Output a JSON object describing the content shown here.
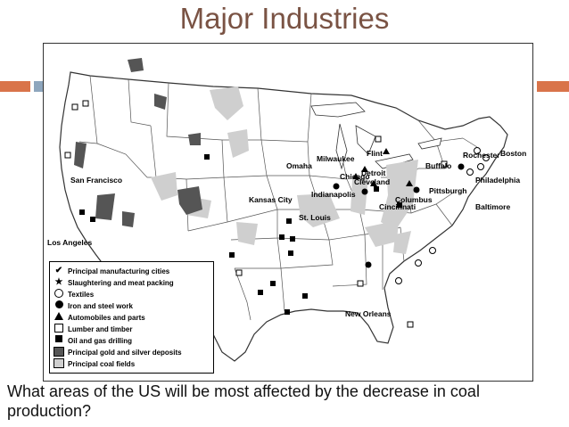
{
  "title": "Major Industries",
  "question": "What areas of the US will be most affected by the decrease in coal production?",
  "colors": {
    "title": "#7a5344",
    "accent_orange": "#d9744a",
    "accent_blue": "#8ea6bd",
    "gold_silver": "#555555",
    "coal": "#cfcfcf"
  },
  "map": {
    "cities": [
      "San Francisco",
      "Los Angeles",
      "Omaha",
      "Kansas City",
      "St. Louis",
      "Chicago",
      "Milwaukee",
      "Indianapolis",
      "Flint",
      "Detroit",
      "Cleveland",
      "Columbus",
      "Cincinnati",
      "Pittsburgh",
      "Buffalo",
      "Rochester",
      "Boston",
      "Philadelphia",
      "Baltimore",
      "New Orleans"
    ],
    "legend": [
      {
        "icon": "checkmark-icon",
        "label": "Principal manufacturing cities"
      },
      {
        "icon": "star-icon",
        "label": "Slaughtering and meat packing"
      },
      {
        "icon": "open-circle-icon",
        "label": "Textiles"
      },
      {
        "icon": "filled-circle-icon",
        "label": "Iron and steel work"
      },
      {
        "icon": "triangle-icon",
        "label": "Automobiles and parts"
      },
      {
        "icon": "open-square-icon",
        "label": "Lumber and timber"
      },
      {
        "icon": "filled-square-icon",
        "label": "Oil and gas drilling"
      },
      {
        "icon": "dark-swatch-icon",
        "label": "Principal gold and silver deposits"
      },
      {
        "icon": "light-swatch-icon",
        "label": "Principal coal fields"
      }
    ]
  }
}
